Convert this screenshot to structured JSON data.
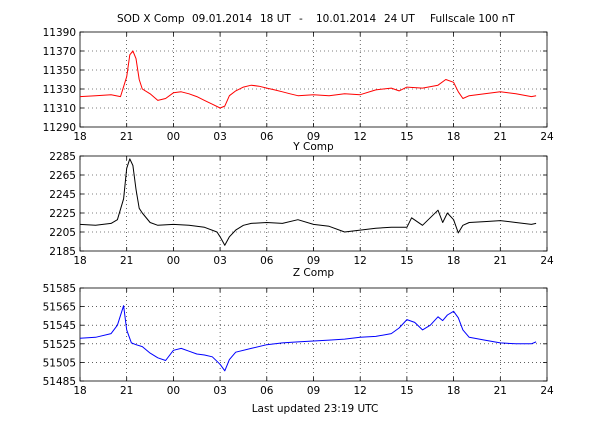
{
  "header": {
    "station_comp": "SOD X Comp",
    "start_date": "09.01.2014",
    "start_time": "18 UT",
    "dash": "-",
    "end_date": "10.01.2014",
    "end_time": "24 UT",
    "fullscale": "Fullscale 100 nT"
  },
  "footer": {
    "last_updated": "Last updated  23:19 UTC"
  },
  "colors": {
    "x": "#ff0000",
    "y": "#000000",
    "z": "#0000ff"
  },
  "chart_data": [
    {
      "type": "line",
      "name": "X Comp",
      "xlabel": "",
      "ylabel": "",
      "xlim": [
        18,
        48
      ],
      "xticks": [
        18,
        21,
        24,
        27,
        30,
        33,
        36,
        39,
        42,
        45,
        48
      ],
      "xtick_labels": [
        "18",
        "21",
        "00",
        "03",
        "06",
        "09",
        "12",
        "15",
        "18",
        "21",
        "24"
      ],
      "ylim": [
        11290,
        11390
      ],
      "yticks": [
        11290,
        11310,
        11330,
        11350,
        11370,
        11390
      ],
      "ytick_labels": [
        "11290",
        "11310",
        "11330",
        "11350",
        "11370",
        "11390"
      ],
      "grid": true,
      "color": "#ff0000",
      "x": [
        18.0,
        19.0,
        20.0,
        20.6,
        21.0,
        21.2,
        21.4,
        21.6,
        21.8,
        22.0,
        22.5,
        23.0,
        23.5,
        24.0,
        24.5,
        25.0,
        25.5,
        26.0,
        26.5,
        27.0,
        27.3,
        27.6,
        28.0,
        28.5,
        29.0,
        29.5,
        30.0,
        30.5,
        31.0,
        31.5,
        32.0,
        33.0,
        34.0,
        35.0,
        36.0,
        37.0,
        38.0,
        38.5,
        39.0,
        40.0,
        41.0,
        41.5,
        42.0,
        42.3,
        42.6,
        43.0,
        44.0,
        45.0,
        46.0,
        47.0,
        47.3
      ],
      "y": [
        11322,
        11323,
        11324,
        11322,
        11343,
        11366,
        11370,
        11362,
        11340,
        11330,
        11325,
        11318,
        11320,
        11326,
        11327,
        11325,
        11322,
        11318,
        11314,
        11310,
        11312,
        11323,
        11328,
        11332,
        11334,
        11333,
        11331,
        11329,
        11327,
        11325,
        11323,
        11324,
        11323,
        11325,
        11324,
        11329,
        11331,
        11328,
        11332,
        11331,
        11334,
        11340,
        11337,
        11327,
        11320,
        11323,
        11325,
        11327,
        11325,
        11322,
        11323
      ]
    },
    {
      "type": "line",
      "name": "Y Comp",
      "title": "Y Comp",
      "xlabel": "",
      "ylabel": "",
      "xlim": [
        18,
        48
      ],
      "xticks": [
        18,
        21,
        24,
        27,
        30,
        33,
        36,
        39,
        42,
        45,
        48
      ],
      "xtick_labels": [
        "18",
        "21",
        "00",
        "03",
        "06",
        "09",
        "12",
        "15",
        "18",
        "21",
        "24"
      ],
      "ylim": [
        2185,
        2285
      ],
      "yticks": [
        2185,
        2205,
        2225,
        2245,
        2265,
        2285
      ],
      "ytick_labels": [
        "2185",
        "2205",
        "2225",
        "2245",
        "2265",
        "2285"
      ],
      "grid": true,
      "color": "#000000",
      "x": [
        18.0,
        19.0,
        20.0,
        20.4,
        20.8,
        21.0,
        21.2,
        21.4,
        21.6,
        21.8,
        22.0,
        22.5,
        23.0,
        24.0,
        25.0,
        26.0,
        26.8,
        27.0,
        27.3,
        27.6,
        28.0,
        28.5,
        29.0,
        30.0,
        31.0,
        32.0,
        33.0,
        34.0,
        35.0,
        36.0,
        37.0,
        38.0,
        39.0,
        39.3,
        40.0,
        41.0,
        41.3,
        41.6,
        42.0,
        42.3,
        42.6,
        43.0,
        44.0,
        45.0,
        46.0,
        47.0,
        47.3
      ],
      "y": [
        2213,
        2212,
        2214,
        2218,
        2240,
        2272,
        2282,
        2275,
        2250,
        2230,
        2225,
        2215,
        2212,
        2213,
        2212,
        2210,
        2205,
        2200,
        2191,
        2200,
        2207,
        2212,
        2214,
        2215,
        2214,
        2218,
        2213,
        2211,
        2205,
        2207,
        2209,
        2210,
        2210,
        2220,
        2212,
        2228,
        2215,
        2225,
        2218,
        2204,
        2212,
        2215,
        2216,
        2217,
        2215,
        2213,
        2214
      ]
    },
    {
      "type": "line",
      "name": "Z Comp",
      "title": "Z Comp",
      "xlabel": "",
      "ylabel": "",
      "xlim": [
        18,
        48
      ],
      "xticks": [
        18,
        21,
        24,
        27,
        30,
        33,
        36,
        39,
        42,
        45,
        48
      ],
      "xtick_labels": [
        "18",
        "21",
        "00",
        "03",
        "06",
        "09",
        "12",
        "15",
        "18",
        "21",
        "24"
      ],
      "ylim": [
        51485,
        51585
      ],
      "yticks": [
        51485,
        51505,
        51525,
        51545,
        51565,
        51585
      ],
      "ytick_labels": [
        "51485",
        "51505",
        "51525",
        "51545",
        "51565",
        "51585"
      ],
      "grid": true,
      "color": "#0000ff",
      "x": [
        18.0,
        19.0,
        20.0,
        20.4,
        20.8,
        21.0,
        21.3,
        21.6,
        22.0,
        22.5,
        23.0,
        23.5,
        24.0,
        24.5,
        25.0,
        25.5,
        26.0,
        26.5,
        27.0,
        27.3,
        27.6,
        28.0,
        29.0,
        30.0,
        31.0,
        32.0,
        33.0,
        34.0,
        35.0,
        36.0,
        37.0,
        38.0,
        38.5,
        39.0,
        39.5,
        40.0,
        40.5,
        41.0,
        41.3,
        41.6,
        42.0,
        42.3,
        42.6,
        43.0,
        44.0,
        45.0,
        46.0,
        47.0,
        47.3
      ],
      "y": [
        51531,
        51532,
        51536,
        51545,
        51566,
        51540,
        51526,
        51524,
        51522,
        51515,
        51510,
        51507,
        51518,
        51520,
        51517,
        51514,
        51513,
        51511,
        51503,
        51496,
        51508,
        51516,
        51520,
        51524,
        51526,
        51527,
        51528,
        51529,
        51530,
        51532,
        51533,
        51536,
        51542,
        51551,
        51548,
        51540,
        51545,
        51554,
        51550,
        51556,
        51560,
        51553,
        51540,
        51532,
        51529,
        51526,
        51525,
        51525,
        51527
      ]
    }
  ]
}
